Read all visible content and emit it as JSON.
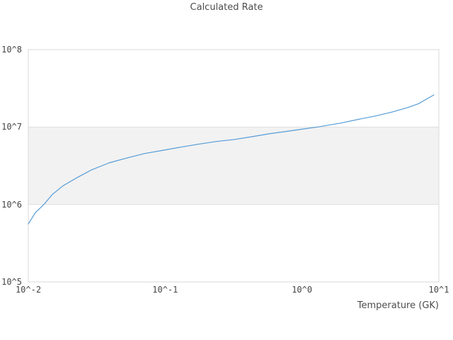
{
  "title": "Calculated Rate",
  "colors": {
    "line": "#569cd6",
    "band_fill": "#f2f2f2",
    "gridline": "#e0e0e0",
    "plot_border": "#d9d9d9",
    "text": "#4d4d4d",
    "background": "#ffffff"
  },
  "chart_data": {
    "type": "line",
    "title": "Calculated Rate",
    "xlabel": "Temperature (GK)",
    "ylabel": "",
    "x_scale": "log",
    "y_scale": "log",
    "xlim": [
      0.01,
      10
    ],
    "ylim": [
      100000,
      100000000
    ],
    "x_tick_values": [
      0.01,
      0.1,
      1,
      10
    ],
    "x_ticklabels": [
      "10^-2",
      "10^-1",
      "10^0",
      "10^1"
    ],
    "y_tick_values": [
      100000000,
      10000000,
      1000000,
      100000
    ],
    "y_ticklabels": [
      "10^8",
      "10^7",
      "10^6",
      "10^5"
    ],
    "grid_y_values": [
      1000000,
      10000000
    ],
    "grid": "horizontal-major-only",
    "legend": "none",
    "highlight_band": {
      "from": 1000000,
      "to": 10000000,
      "color": "#f2f2f2"
    },
    "line_color": "#569cd6",
    "series": [
      {
        "name": "calculated-rate",
        "x": [
          0.01,
          0.0113,
          0.013,
          0.015,
          0.018,
          0.023,
          0.029,
          0.039,
          0.053,
          0.071,
          0.096,
          0.13,
          0.175,
          0.235,
          0.32,
          0.43,
          0.58,
          0.78,
          1.05,
          1.3,
          1.9,
          2.55,
          3.45,
          4.6,
          5.9,
          7.1,
          8.0,
          9.2
        ],
        "y": [
          560000,
          790000,
          1000000,
          1350000,
          1750000,
          2250000,
          2800000,
          3450000,
          4000000,
          4550000,
          5000000,
          5500000,
          6000000,
          6500000,
          6900000,
          7500000,
          8200000,
          8800000,
          9500000,
          10000000,
          11200000,
          12500000,
          13900000,
          15700000,
          17800000,
          20000000,
          22600000,
          26000000
        ]
      }
    ]
  }
}
